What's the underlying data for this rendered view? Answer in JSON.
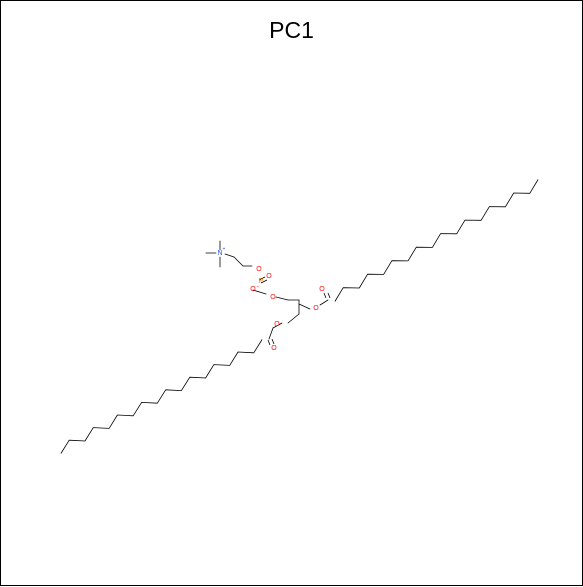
{
  "figure": {
    "title": "PC1"
  },
  "molecule": {
    "atom_labels": {
      "nitrogen": "N",
      "nitrogen_charge": "+",
      "phosphorus": "P",
      "oxygen": "O",
      "oxygen_minus": "O",
      "minus_sign": "−"
    },
    "colors": {
      "bond": "#000000",
      "nitrogen": "#3050f8",
      "oxygen": "#ff0d0d",
      "phosphorus": "#ff8000"
    },
    "acyl_chain_carbons": 18
  }
}
